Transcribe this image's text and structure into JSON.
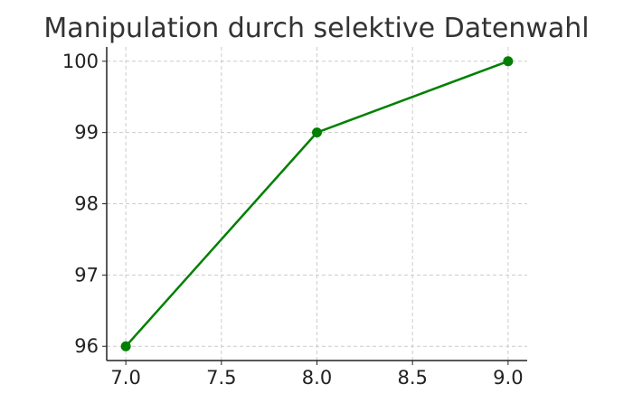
{
  "chart_data": {
    "type": "line",
    "title": "Manipulation durch selektive Datenwahl",
    "xlabel": "",
    "ylabel": "",
    "x": [
      7.0,
      8.0,
      9.0
    ],
    "series": [
      {
        "values": [
          96,
          99,
          100
        ],
        "color": "#008000",
        "marker": "circle"
      }
    ],
    "xlim": [
      6.9,
      9.1
    ],
    "ylim": [
      95.8,
      100.2
    ],
    "xticks": [
      7.0,
      7.5,
      8.0,
      8.5,
      9.0
    ],
    "xtick_labels": [
      "7.0",
      "7.5",
      "8.0",
      "8.5",
      "9.0"
    ],
    "yticks": [
      96,
      97,
      98,
      99,
      100
    ],
    "ytick_labels": [
      "96",
      "97",
      "98",
      "99",
      "100"
    ],
    "grid": true,
    "grid_style": "dashed",
    "spines": [
      "left",
      "bottom"
    ]
  }
}
